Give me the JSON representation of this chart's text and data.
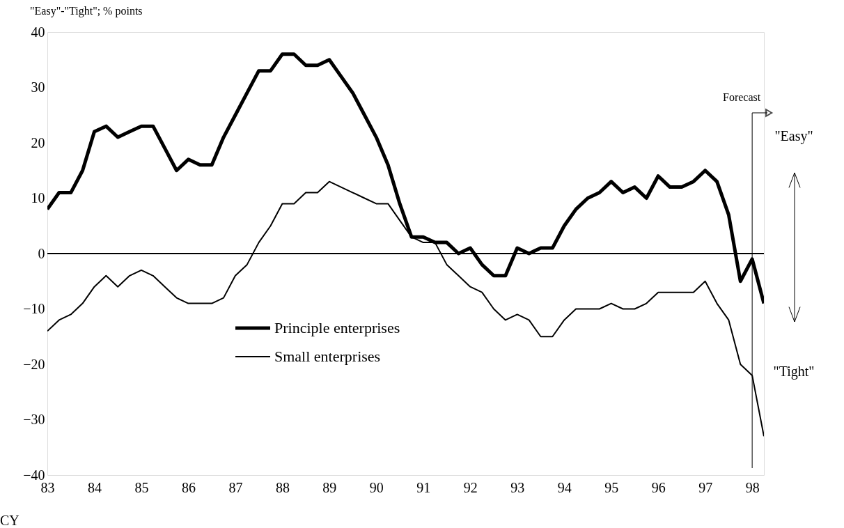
{
  "chart_data": {
    "type": "line",
    "ylabel": "\"Easy\"-\"Tight\"; % points",
    "xlabel": "CY",
    "x": [
      83,
      83.25,
      83.5,
      83.75,
      84,
      84.25,
      84.5,
      84.75,
      85,
      85.25,
      85.5,
      85.75,
      86,
      86.25,
      86.5,
      86.75,
      87,
      87.25,
      87.5,
      87.75,
      88,
      88.25,
      88.5,
      88.75,
      89,
      89.25,
      89.5,
      89.75,
      90,
      90.25,
      90.5,
      90.75,
      91,
      91.25,
      91.5,
      91.75,
      92,
      92.25,
      92.5,
      92.75,
      93,
      93.25,
      93.5,
      93.75,
      94,
      94.25,
      94.5,
      94.75,
      95,
      95.25,
      95.5,
      95.75,
      96,
      96.25,
      96.5,
      96.75,
      97,
      97.25,
      97.5,
      97.75,
      98,
      98.25
    ],
    "series": [
      {
        "name": "Principle enterprises",
        "color": "#000000",
        "values": [
          8,
          11,
          11,
          15,
          22,
          23,
          21,
          22,
          23,
          23,
          19,
          15,
          17,
          16,
          16,
          21,
          25,
          29,
          33,
          33,
          36,
          36,
          34,
          34,
          35,
          32,
          29,
          25,
          21,
          16,
          9,
          3,
          3,
          2,
          2,
          0,
          1,
          -2,
          -4,
          -4,
          1,
          0,
          1,
          1,
          5,
          8,
          10,
          11,
          13,
          11,
          12,
          10,
          14,
          12,
          12,
          13,
          15,
          13,
          7,
          -5,
          -1,
          -9
        ]
      },
      {
        "name": "Small enterprises",
        "color": "#000000",
        "values": [
          -14,
          -12,
          -11,
          -9,
          -6,
          -4,
          -6,
          -4,
          -3,
          -4,
          -6,
          -8,
          -9,
          -9,
          -9,
          -8,
          -4,
          -2,
          2,
          5,
          9,
          9,
          11,
          11,
          13,
          12,
          11,
          10,
          9,
          9,
          6,
          3,
          2,
          2,
          -2,
          -4,
          -6,
          -7,
          -10,
          -12,
          -11,
          -12,
          -15,
          -15,
          -12,
          -10,
          -10,
          -10,
          -9,
          -10,
          -10,
          -9,
          -7,
          -7,
          -7,
          -7,
          -5,
          -9,
          -12,
          -20,
          -22,
          -33
        ]
      }
    ],
    "xlim": [
      83,
      98.25
    ],
    "xticks": [
      83,
      84,
      85,
      86,
      87,
      88,
      89,
      90,
      91,
      92,
      93,
      94,
      95,
      96,
      97,
      98
    ],
    "ylim": [
      -40,
      40
    ],
    "yticks": [
      -40,
      -30,
      -20,
      -10,
      0,
      10,
      20,
      30,
      40
    ],
    "ref_lines": [
      {
        "axis": "y",
        "value": 0
      },
      {
        "axis": "x",
        "value": 98,
        "label": "Forecast"
      }
    ],
    "annotations": [
      "\"Easy\"",
      "\"Tight\""
    ],
    "legend": "bottom left",
    "grid": false
  }
}
